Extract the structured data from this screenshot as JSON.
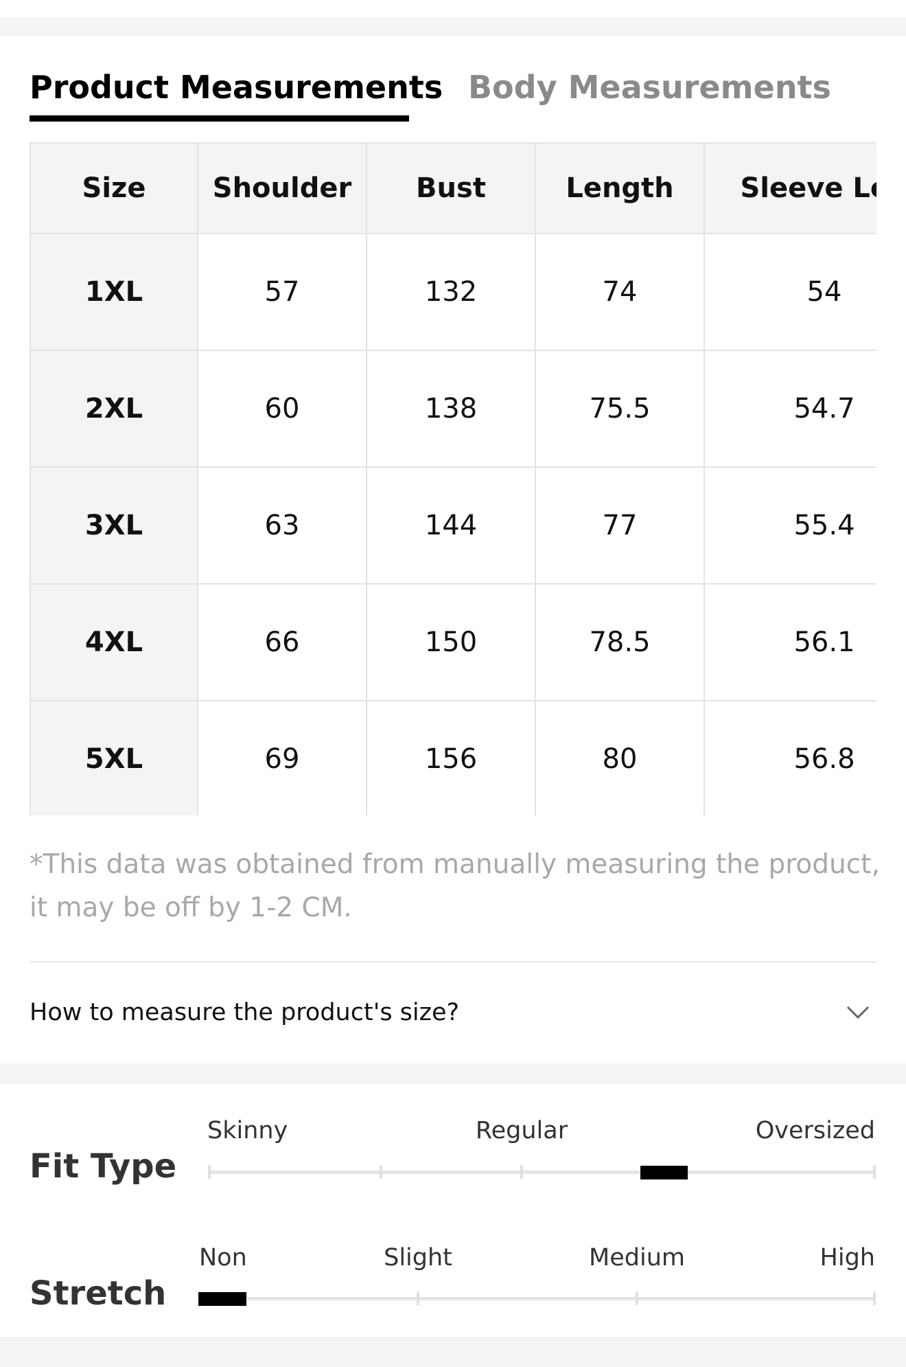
{
  "tabs": [
    "Product Measurements",
    "Body Measurements"
  ],
  "table": {
    "header": [
      "Size",
      "Shoulder",
      "Bust",
      "Length",
      "Sleeve Len"
    ],
    "rows": [
      [
        "1XL",
        "57",
        "132",
        "74",
        "54"
      ],
      [
        "2XL",
        "60",
        "138",
        "75.5",
        "54.7"
      ],
      [
        "3XL",
        "63",
        "144",
        "77",
        "55.4"
      ],
      [
        "4XL",
        "66",
        "150",
        "78.5",
        "56.1"
      ],
      [
        "5XL",
        "69",
        "156",
        "80",
        "56.8"
      ]
    ]
  },
  "note": [
    "*This data was obtained from manually measuring the product,",
    "it may be off by 1-2 CM."
  ],
  "accordion": {
    "question": "How to measure the product's size?"
  },
  "fit_type": {
    "label": "Fit Type",
    "options": [
      "Skinny",
      "Regular",
      "Oversized"
    ]
  },
  "stretch": {
    "label": "Stretch",
    "options": [
      "Non",
      "Slight",
      "Medium",
      "High"
    ]
  }
}
